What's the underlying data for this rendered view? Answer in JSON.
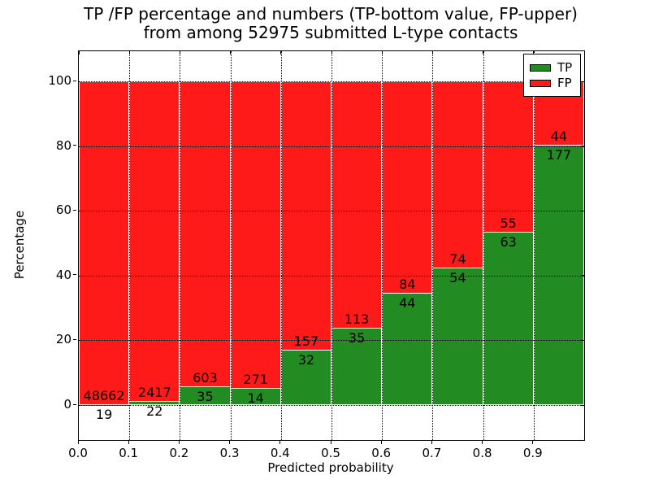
{
  "title": {
    "line1": "TP /FP percentage and numbers (TP-bottom value, FP-upper)",
    "line2": "from among 52975 submitted L-type contacts"
  },
  "axes": {
    "xlabel": "Predicted probability",
    "ylabel": "Percentage",
    "xtick_labels": [
      "0.0",
      "0.1",
      "0.2",
      "0.3",
      "0.4",
      "0.5",
      "0.6",
      "0.7",
      "0.8",
      "0.9"
    ],
    "ytick_values": [
      0,
      20,
      40,
      60,
      80,
      100
    ],
    "xlim": [
      0.0,
      1.0
    ],
    "ylim": [
      -11,
      109
    ],
    "grid": "dotted"
  },
  "legend": {
    "position": "upper right",
    "items": [
      {
        "label": "TP",
        "color": "#228b22"
      },
      {
        "label": "FP",
        "color": "#ff1a1a"
      }
    ]
  },
  "chart_data": {
    "type": "bar",
    "stacked": true,
    "title": "TP /FP percentage and numbers (TP-bottom value, FP-upper) from among 52975 submitted L-type contacts",
    "xlabel": "Predicted probability",
    "ylabel": "Percentage",
    "total_submitted_contacts": 52975,
    "bin_edges": [
      0.0,
      0.1,
      0.2,
      0.3,
      0.4,
      0.5,
      0.6,
      0.7,
      0.8,
      0.9,
      1.0
    ],
    "series": [
      {
        "name": "TP",
        "color": "#228b22",
        "counts": [
          19,
          22,
          35,
          14,
          32,
          35,
          44,
          54,
          63,
          177
        ]
      },
      {
        "name": "FP",
        "color": "#ff1a1a",
        "counts": [
          48662,
          2417,
          603,
          271,
          157,
          113,
          84,
          74,
          55,
          44
        ]
      }
    ],
    "tp_percent": [
      0.04,
      0.9,
      5.49,
      4.91,
      16.93,
      23.65,
      34.38,
      42.19,
      53.39,
      80.09
    ],
    "bars_sum_to_percent": 100,
    "legend_position": "upper right",
    "grid": true
  }
}
